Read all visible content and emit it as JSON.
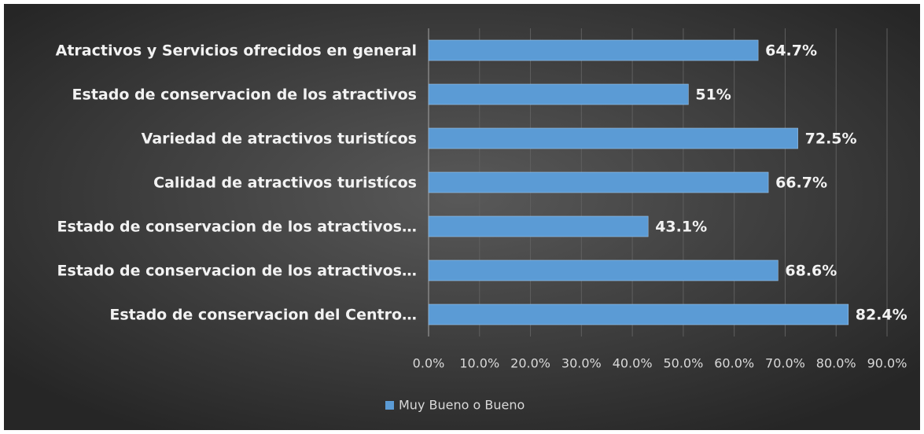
{
  "chart_data": {
    "type": "bar",
    "orientation": "horizontal",
    "categories": [
      "Atractivos y Servicios ofrecidos en general",
      "Estado de conservacion de los atractivos",
      "Variedad de atractivos turistícos",
      "Calidad de atractivos turistícos",
      "Estado de conservacion de los atractivos…",
      "Estado de conservacion de los atractivos…",
      "Estado de conservacion del Centro…"
    ],
    "series": [
      {
        "name": "Muy Bueno o Bueno",
        "color": "#5b9bd5",
        "values": [
          64.7,
          51,
          72.5,
          66.7,
          43.1,
          68.6,
          82.4
        ],
        "value_labels": [
          "64.7%",
          "51%",
          "72.5%",
          "66.7%",
          "43.1%",
          "68.6%",
          "82.4%"
        ]
      }
    ],
    "xlim": [
      0,
      90
    ],
    "xticks": [
      {
        "value": 0,
        "label": "0.0%"
      },
      {
        "value": 10,
        "label": "10.0%"
      },
      {
        "value": 20,
        "label": "20.0%"
      },
      {
        "value": 30,
        "label": "30.0%"
      },
      {
        "value": 40,
        "label": "40.0%"
      },
      {
        "value": 50,
        "label": "50.0%"
      },
      {
        "value": 60,
        "label": "60.0%"
      },
      {
        "value": 70,
        "label": "70.0%"
      },
      {
        "value": 80,
        "label": "80.0%"
      },
      {
        "value": 90,
        "label": "90.0%"
      }
    ],
    "grid": true,
    "legend": "bottom"
  }
}
